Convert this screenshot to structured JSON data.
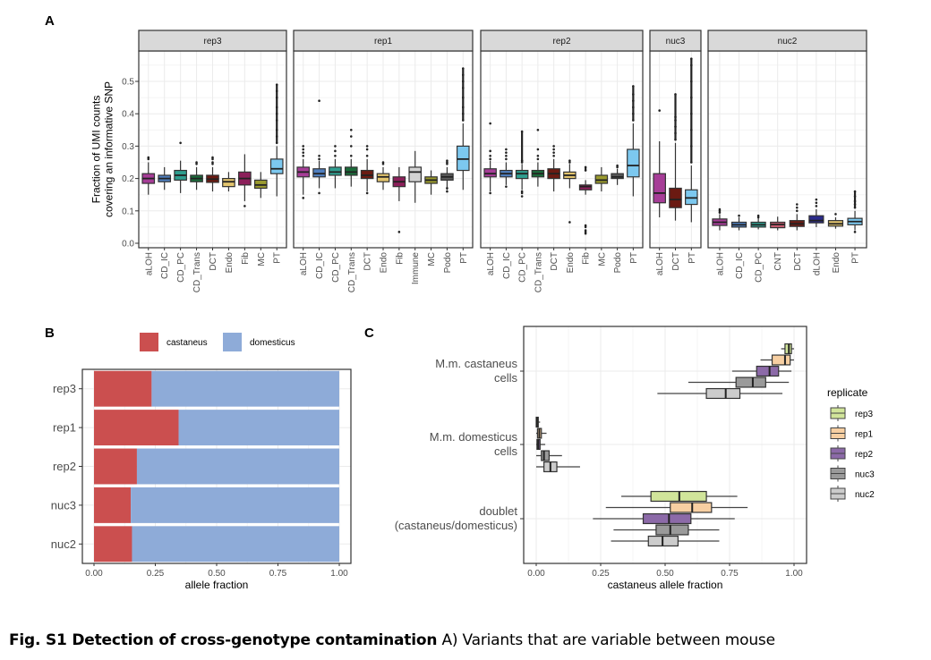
{
  "panel_labels": {
    "a": "A",
    "b": "B",
    "c": "C"
  },
  "caption": {
    "bold": "Fig. S1  Detection of cross-genotype contamination",
    "rest": " A) Variants that are variable between mouse"
  },
  "chart_data": [
    {
      "id": "A",
      "type": "box",
      "title": "",
      "xlabel": "",
      "ylabel": "Fraction of UMI counts\ncovering an informative SNP",
      "ylabel_lines": [
        "Fraction of UMI counts",
        "covering an informative SNP"
      ],
      "ylim": [
        0,
        0.58
      ],
      "yticks": [
        0.0,
        0.1,
        0.2,
        0.3,
        0.4,
        0.5
      ],
      "ytick_labels": [
        "0.0",
        "0.1",
        "0.2",
        "0.3",
        "0.4",
        "0.5"
      ],
      "grid": true,
      "cell_type_colors": {
        "aLOH": "#a63d97",
        "CD_IC": "#4f7fbf",
        "CD_PC": "#2f9e8f",
        "CD_Trans": "#1b6b3a",
        "DCT": "#6b1a12",
        "Endo": "#e3c56e",
        "Fib": "#8c1f5a",
        "Immune": "#d3d3d3",
        "MC": "#9a9a2e",
        "Podo": "#5a5a5a",
        "PT": "#7cc8ef",
        "CNT": "#c45a6e",
        "dLOH": "#2a2a8a"
      },
      "facets": [
        {
          "name": "rep3",
          "boxes": [
            {
              "cat": "aLOH",
              "q1": 0.185,
              "med": 0.2,
              "q3": 0.215,
              "lo": 0.15,
              "hi": 0.25,
              "out": [
                0.26,
                0.265
              ]
            },
            {
              "cat": "CD_IC",
              "q1": 0.19,
              "med": 0.2,
              "q3": 0.21,
              "lo": 0.165,
              "hi": 0.235,
              "out": []
            },
            {
              "cat": "CD_PC",
              "q1": 0.195,
              "med": 0.21,
              "q3": 0.225,
              "lo": 0.155,
              "hi": 0.255,
              "out": [
                0.31
              ]
            },
            {
              "cat": "CD_Trans",
              "q1": 0.19,
              "med": 0.2,
              "q3": 0.21,
              "lo": 0.165,
              "hi": 0.235,
              "out": [
                0.245,
                0.25
              ]
            },
            {
              "cat": "DCT",
              "q1": 0.188,
              "med": 0.198,
              "q3": 0.21,
              "lo": 0.16,
              "hi": 0.235,
              "out": [
                0.245,
                0.25,
                0.26,
                0.265
              ]
            },
            {
              "cat": "Endo",
              "q1": 0.175,
              "med": 0.19,
              "q3": 0.2,
              "lo": 0.16,
              "hi": 0.22,
              "out": []
            },
            {
              "cat": "Fib",
              "q1": 0.18,
              "med": 0.2,
              "q3": 0.22,
              "lo": 0.13,
              "hi": 0.275,
              "out": [
                0.115
              ]
            },
            {
              "cat": "MC",
              "q1": 0.17,
              "med": 0.18,
              "q3": 0.195,
              "lo": 0.14,
              "hi": 0.22,
              "out": []
            },
            {
              "cat": "PT",
              "q1": 0.215,
              "med": 0.23,
              "q3": 0.26,
              "lo": 0.145,
              "hi": 0.3,
              "out": [
                0.31,
                0.33,
                0.35,
                0.38,
                0.4,
                0.42,
                0.45,
                0.47,
                0.49
              ]
            }
          ]
        },
        {
          "name": "rep1",
          "boxes": [
            {
              "cat": "aLOH",
              "q1": 0.205,
              "med": 0.22,
              "q3": 0.235,
              "lo": 0.15,
              "hi": 0.26,
              "out": [
                0.14,
                0.27,
                0.28,
                0.29,
                0.3
              ]
            },
            {
              "cat": "CD_IC",
              "q1": 0.205,
              "med": 0.215,
              "q3": 0.23,
              "lo": 0.17,
              "hi": 0.255,
              "out": [
                0.155,
                0.26,
                0.27,
                0.44
              ]
            },
            {
              "cat": "CD_PC",
              "q1": 0.21,
              "med": 0.22,
              "q3": 0.235,
              "lo": 0.17,
              "hi": 0.26,
              "out": [
                0.27,
                0.285,
                0.3
              ]
            },
            {
              "cat": "CD_Trans",
              "q1": 0.21,
              "med": 0.22,
              "q3": 0.235,
              "lo": 0.175,
              "hi": 0.26,
              "out": [
                0.27,
                0.3,
                0.33,
                0.35
              ]
            },
            {
              "cat": "DCT",
              "q1": 0.2,
              "med": 0.21,
              "q3": 0.225,
              "lo": 0.16,
              "hi": 0.26,
              "out": [
                0.155,
                0.27,
                0.29,
                0.3
              ]
            },
            {
              "cat": "Endo",
              "q1": 0.19,
              "med": 0.205,
              "q3": 0.215,
              "lo": 0.165,
              "hi": 0.235,
              "out": [
                0.245,
                0.25
              ]
            },
            {
              "cat": "Fib",
              "q1": 0.175,
              "med": 0.19,
              "q3": 0.205,
              "lo": 0.13,
              "hi": 0.235,
              "out": [
                0.035
              ]
            },
            {
              "cat": "Immune",
              "q1": 0.19,
              "med": 0.22,
              "q3": 0.235,
              "lo": 0.125,
              "hi": 0.285,
              "out": []
            },
            {
              "cat": "MC",
              "q1": 0.185,
              "med": 0.195,
              "q3": 0.205,
              "lo": 0.15,
              "hi": 0.225,
              "out": []
            },
            {
              "cat": "Podo",
              "q1": 0.195,
              "med": 0.205,
              "q3": 0.215,
              "lo": 0.165,
              "hi": 0.235,
              "out": [
                0.16,
                0.17,
                0.245,
                0.25,
                0.255
              ]
            },
            {
              "cat": "PT",
              "q1": 0.225,
              "med": 0.26,
              "q3": 0.3,
              "lo": 0.165,
              "hi": 0.37,
              "out": [
                0.38,
                0.4,
                0.42,
                0.45,
                0.48,
                0.5,
                0.52,
                0.54
              ]
            }
          ]
        },
        {
          "name": "rep2",
          "boxes": [
            {
              "cat": "aLOH",
              "q1": 0.205,
              "med": 0.215,
              "q3": 0.23,
              "lo": 0.16,
              "hi": 0.255,
              "out": [
                0.155,
                0.26,
                0.27,
                0.285,
                0.37
              ]
            },
            {
              "cat": "CD_IC",
              "q1": 0.205,
              "med": 0.215,
              "q3": 0.225,
              "lo": 0.18,
              "hi": 0.25,
              "out": [
                0.175,
                0.26,
                0.27,
                0.28,
                0.29
              ]
            },
            {
              "cat": "CD_PC",
              "q1": 0.2,
              "med": 0.215,
              "q3": 0.225,
              "lo": 0.165,
              "hi": 0.245,
              "out": [
                0.145,
                0.155,
                0.16,
                0.25,
                0.255,
                0.345
              ]
            },
            {
              "cat": "CD_Trans",
              "q1": 0.205,
              "med": 0.215,
              "q3": 0.225,
              "lo": 0.175,
              "hi": 0.25,
              "out": [
                0.26,
                0.27,
                0.29,
                0.35
              ]
            },
            {
              "cat": "DCT",
              "q1": 0.2,
              "med": 0.215,
              "q3": 0.23,
              "lo": 0.16,
              "hi": 0.26,
              "out": [
                0.27,
                0.28,
                0.29,
                0.3
              ]
            },
            {
              "cat": "Endo",
              "q1": 0.2,
              "med": 0.21,
              "q3": 0.22,
              "lo": 0.17,
              "hi": 0.245,
              "out": [
                0.065,
                0.25,
                0.255
              ]
            },
            {
              "cat": "Fib",
              "q1": 0.165,
              "med": 0.175,
              "q3": 0.18,
              "lo": 0.15,
              "hi": 0.195,
              "out": [
                0.03,
                0.035,
                0.04,
                0.05,
                0.055,
                0.225,
                0.235
              ]
            },
            {
              "cat": "MC",
              "q1": 0.185,
              "med": 0.195,
              "q3": 0.21,
              "lo": 0.16,
              "hi": 0.235,
              "out": []
            },
            {
              "cat": "Podo",
              "q1": 0.2,
              "med": 0.205,
              "q3": 0.215,
              "lo": 0.18,
              "hi": 0.23,
              "out": [
                0.235,
                0.24
              ]
            },
            {
              "cat": "PT",
              "q1": 0.205,
              "med": 0.24,
              "q3": 0.29,
              "lo": 0.145,
              "hi": 0.37,
              "out": [
                0.38,
                0.4,
                0.42,
                0.44,
                0.46,
                0.485
              ]
            }
          ]
        },
        {
          "name": "nuc3",
          "boxes": [
            {
              "cat": "aLOH",
              "q1": 0.125,
              "med": 0.155,
              "q3": 0.215,
              "lo": 0.08,
              "hi": 0.315,
              "out": [
                0.41
              ]
            },
            {
              "cat": "DCT",
              "q1": 0.11,
              "med": 0.135,
              "q3": 0.17,
              "lo": 0.07,
              "hi": 0.31,
              "out": [
                0.32,
                0.34,
                0.36,
                0.38,
                0.39,
                0.46
              ]
            },
            {
              "cat": "PT",
              "q1": 0.12,
              "med": 0.14,
              "q3": 0.165,
              "lo": 0.065,
              "hi": 0.24,
              "out": [
                0.25,
                0.3,
                0.35,
                0.4,
                0.45,
                0.5,
                0.55,
                0.57
              ]
            }
          ]
        },
        {
          "name": "nuc2",
          "boxes": [
            {
              "cat": "aLOH",
              "q1": 0.055,
              "med": 0.065,
              "q3": 0.075,
              "lo": 0.04,
              "hi": 0.09,
              "out": [
                0.095,
                0.1,
                0.105
              ]
            },
            {
              "cat": "CD_IC",
              "q1": 0.05,
              "med": 0.057,
              "q3": 0.065,
              "lo": 0.04,
              "hi": 0.08,
              "out": [
                0.085
              ]
            },
            {
              "cat": "CD_PC",
              "q1": 0.05,
              "med": 0.057,
              "q3": 0.065,
              "lo": 0.043,
              "hi": 0.078,
              "out": [
                0.08,
                0.085
              ]
            },
            {
              "cat": "CNT",
              "q1": 0.048,
              "med": 0.058,
              "q3": 0.065,
              "lo": 0.04,
              "hi": 0.082,
              "out": []
            },
            {
              "cat": "DCT",
              "q1": 0.052,
              "med": 0.06,
              "q3": 0.07,
              "lo": 0.04,
              "hi": 0.09,
              "out": [
                0.1,
                0.11,
                0.12
              ]
            },
            {
              "cat": "dLOH",
              "q1": 0.063,
              "med": 0.07,
              "q3": 0.085,
              "lo": 0.05,
              "hi": 0.105,
              "out": [
                0.115,
                0.125,
                0.135
              ]
            },
            {
              "cat": "Endo",
              "q1": 0.053,
              "med": 0.06,
              "q3": 0.07,
              "lo": 0.045,
              "hi": 0.08,
              "out": [
                0.09
              ]
            },
            {
              "cat": "PT",
              "q1": 0.057,
              "med": 0.067,
              "q3": 0.077,
              "lo": 0.04,
              "hi": 0.1,
              "out": [
                0.035,
                0.11,
                0.12,
                0.13,
                0.145,
                0.16
              ]
            }
          ]
        }
      ]
    },
    {
      "id": "B",
      "type": "bar",
      "stacked": true,
      "orientation": "horizontal",
      "title": "",
      "xlabel": "allele fraction",
      "ylabel": "",
      "xlim": [
        0,
        1
      ],
      "xticks": [
        0,
        0.25,
        0.5,
        0.75,
        1.0
      ],
      "xtick_labels": [
        "0.00",
        "0.25",
        "0.50",
        "0.75",
        "1.00"
      ],
      "categories": [
        "rep3",
        "rep1",
        "rep2",
        "nuc3",
        "nuc2"
      ],
      "series": [
        {
          "name": "castaneus",
          "color": "#cb4f4f",
          "values": [
            0.235,
            0.345,
            0.175,
            0.15,
            0.155
          ]
        },
        {
          "name": "domesticus",
          "color": "#8eabd8",
          "values": [
            0.765,
            0.655,
            0.825,
            0.85,
            0.845
          ]
        }
      ],
      "legend": "top",
      "grid": true
    },
    {
      "id": "C",
      "type": "box",
      "orientation": "horizontal",
      "title": "",
      "xlabel": "castaneus allele fraction",
      "ylabel": "",
      "xlim": [
        0,
        1
      ],
      "xticks": [
        0,
        0.25,
        0.5,
        0.75,
        1.0
      ],
      "xtick_labels": [
        "0.00",
        "0.25",
        "0.50",
        "0.75",
        "1.00"
      ],
      "categories": [
        {
          "lines": [
            "M.m. castaneus",
            "cells"
          ]
        },
        {
          "lines": [
            "M.m. domesticus",
            "cells"
          ]
        },
        {
          "lines": [
            "doublet",
            "(castaneus/domesticus)"
          ]
        }
      ],
      "legend_title": "replicate",
      "legend": "right",
      "series": [
        {
          "name": "rep3",
          "color": "#d1e59a",
          "boxes": [
            {
              "lo": 0.95,
              "q1": 0.965,
              "med": 0.98,
              "q3": 0.99,
              "hi": 1.0
            },
            {
              "lo": 0.0,
              "q1": 0.0,
              "med": 0.003,
              "q3": 0.008,
              "hi": 0.015
            },
            {
              "lo": 0.33,
              "q1": 0.445,
              "med": 0.555,
              "q3": 0.66,
              "hi": 0.78
            }
          ]
        },
        {
          "name": "rep1",
          "color": "#f7cfa2",
          "boxes": [
            {
              "lo": 0.87,
              "q1": 0.915,
              "med": 0.965,
              "q3": 0.985,
              "hi": 1.0
            },
            {
              "lo": 0.0,
              "q1": 0.005,
              "med": 0.012,
              "q3": 0.02,
              "hi": 0.04
            },
            {
              "lo": 0.27,
              "q1": 0.52,
              "med": 0.605,
              "q3": 0.68,
              "hi": 0.82
            }
          ]
        },
        {
          "name": "rep2",
          "color": "#8c6aa8",
          "boxes": [
            {
              "lo": 0.76,
              "q1": 0.855,
              "med": 0.905,
              "q3": 0.94,
              "hi": 0.99
            },
            {
              "lo": 0.0,
              "q1": 0.003,
              "med": 0.008,
              "q3": 0.015,
              "hi": 0.035
            },
            {
              "lo": 0.22,
              "q1": 0.415,
              "med": 0.515,
              "q3": 0.6,
              "hi": 0.77
            }
          ]
        },
        {
          "name": "nuc3",
          "color": "#9a9a9a",
          "boxes": [
            {
              "lo": 0.59,
              "q1": 0.775,
              "med": 0.84,
              "q3": 0.89,
              "hi": 0.98
            },
            {
              "lo": 0.0,
              "q1": 0.02,
              "med": 0.03,
              "q3": 0.05,
              "hi": 0.1
            },
            {
              "lo": 0.3,
              "q1": 0.465,
              "med": 0.52,
              "q3": 0.59,
              "hi": 0.71
            }
          ]
        },
        {
          "name": "nuc2",
          "color": "#cccccc",
          "boxes": [
            {
              "lo": 0.47,
              "q1": 0.66,
              "med": 0.735,
              "q3": 0.79,
              "hi": 0.955
            },
            {
              "lo": 0.0,
              "q1": 0.03,
              "med": 0.055,
              "q3": 0.08,
              "hi": 0.17
            },
            {
              "lo": 0.29,
              "q1": 0.435,
              "med": 0.49,
              "q3": 0.55,
              "hi": 0.71
            }
          ]
        }
      ],
      "grid": true
    }
  ]
}
